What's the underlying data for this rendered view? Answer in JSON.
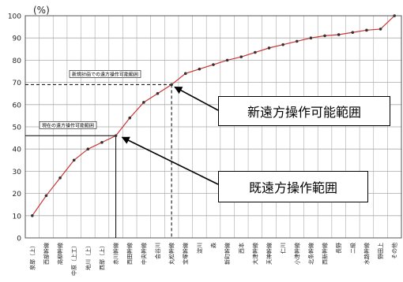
{
  "chart_data": {
    "type": "line",
    "unit_label": "(%)",
    "ylim": [
      0,
      100
    ],
    "yticks": [
      0,
      10,
      20,
      30,
      40,
      50,
      60,
      70,
      80,
      90,
      100
    ],
    "grid": true,
    "categories": [
      "泉部（上）",
      "西部幹線",
      "高柳幹線",
      "中原（上工）",
      "地川（上）",
      "西部（上）",
      "赤川幹線",
      "西田幹線",
      "中央幹線",
      "会谷川",
      "丸松幹線",
      "宝塚幹線",
      "淀川",
      "森",
      "新町幹線",
      "西本",
      "大津幹線",
      "天神幹線",
      "仁川",
      "小津幹線",
      "北条幹線",
      "西新幹線",
      "長野",
      "二級",
      "水路幹線",
      "野田上",
      "その他"
    ],
    "series": [
      {
        "values": [
          10,
          19,
          27,
          35,
          40,
          43,
          46,
          54,
          61,
          65,
          69,
          74,
          76,
          78,
          80,
          81.5,
          83.5,
          85.5,
          87,
          88.5,
          90,
          91,
          91.5,
          92.5,
          93.5,
          94,
          100
        ]
      }
    ],
    "ref_lines": [
      {
        "label": "新規計画での遠方操作可能範囲",
        "y": 69,
        "x_index": 10
      },
      {
        "label": "現在の遠方操作可能範囲",
        "y": 46,
        "x_index": 6
      }
    ],
    "callouts": {
      "new": "新遠方操作可能範囲",
      "existing": "既遠方操作範囲"
    },
    "colors": {
      "line": "#cc3333",
      "marker": "#333333",
      "grid": "#aaaaaa",
      "ref": "#000000"
    }
  }
}
